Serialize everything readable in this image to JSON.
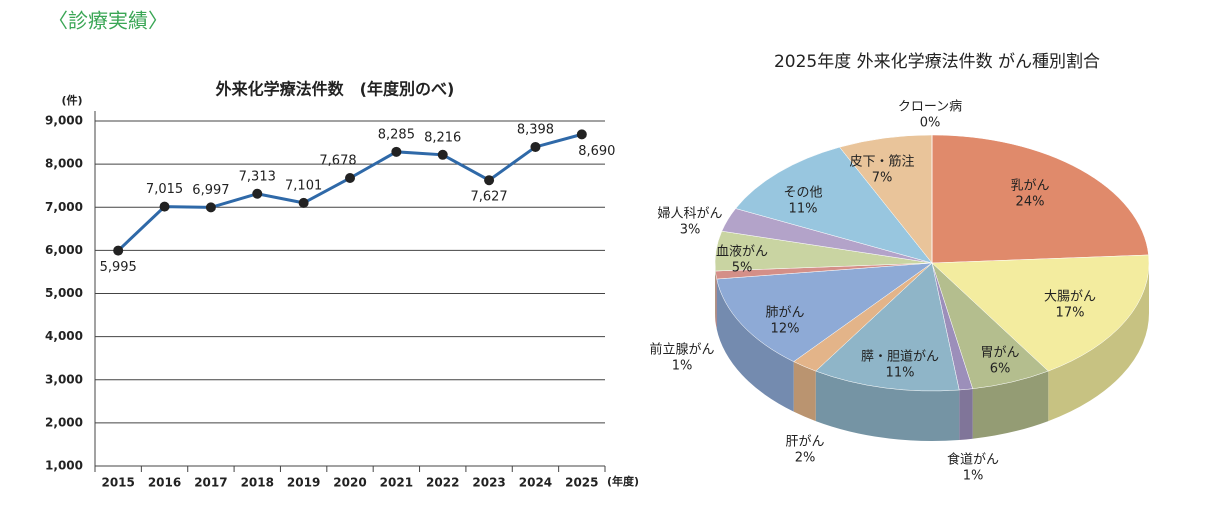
{
  "header": {
    "title": "〈診療実績〉"
  },
  "chart_data": [
    {
      "type": "line",
      "title": "外来化学療法件数　(年度別のべ)",
      "ylabel": "(件)",
      "xlabel": "(年度)",
      "categories": [
        "2015",
        "2016",
        "2017",
        "2018",
        "2019",
        "2020",
        "2021",
        "2022",
        "2023",
        "2024",
        "2025"
      ],
      "values": [
        5995,
        7015,
        6997,
        7313,
        7101,
        7678,
        8285,
        8216,
        7627,
        8398,
        8690
      ],
      "value_labels": [
        "5,995",
        "7,015",
        "6,997",
        "7,313",
        "7,101",
        "7,678",
        "8,285",
        "8,216",
        "7,627",
        "8,398",
        "8,690"
      ],
      "color": "#2f69a8",
      "ylim": [
        1000,
        9000
      ],
      "yticks": [
        {
          "value": 1000,
          "label": "1,000"
        },
        {
          "value": 2000,
          "label": "2,000"
        },
        {
          "value": 3000,
          "label": "3,000"
        },
        {
          "value": 4000,
          "label": "4,000"
        },
        {
          "value": 5000,
          "label": "5,000"
        },
        {
          "value": 6000,
          "label": "6,000"
        },
        {
          "value": 7000,
          "label": "7,000"
        },
        {
          "value": 8000,
          "label": "8,000"
        },
        {
          "value": 9000,
          "label": "9,000"
        }
      ],
      "grid": true
    },
    {
      "type": "pie",
      "title": "2025年度 外来化学療法件数 がん種別割合",
      "categories": [
        "乳がん",
        "大腸がん",
        "胃がん",
        "食道がん",
        "膵・胆道がん",
        "肝がん",
        "肺がん",
        "前立腺がん",
        "血液がん",
        "婦人科がん",
        "その他",
        "皮下・筋注",
        "クローン病"
      ],
      "values": [
        24,
        17,
        6,
        1,
        11,
        2,
        12,
        1,
        5,
        3,
        11,
        7,
        0
      ],
      "value_labels": [
        "24%",
        "17%",
        "6%",
        "1%",
        "11%",
        "2%",
        "12%",
        "1%",
        "5%",
        "3%",
        "11%",
        "7%",
        "0%"
      ],
      "colors": [
        "#e08a6b",
        "#f3ec9f",
        "#b4be8e",
        "#9c8fba",
        "#8fb5c8",
        "#e3b489",
        "#8eaad6",
        "#d48f88",
        "#c9d4a2",
        "#b3a3c9",
        "#98c6df",
        "#e9c49a",
        "#cfd8e6"
      ]
    }
  ]
}
